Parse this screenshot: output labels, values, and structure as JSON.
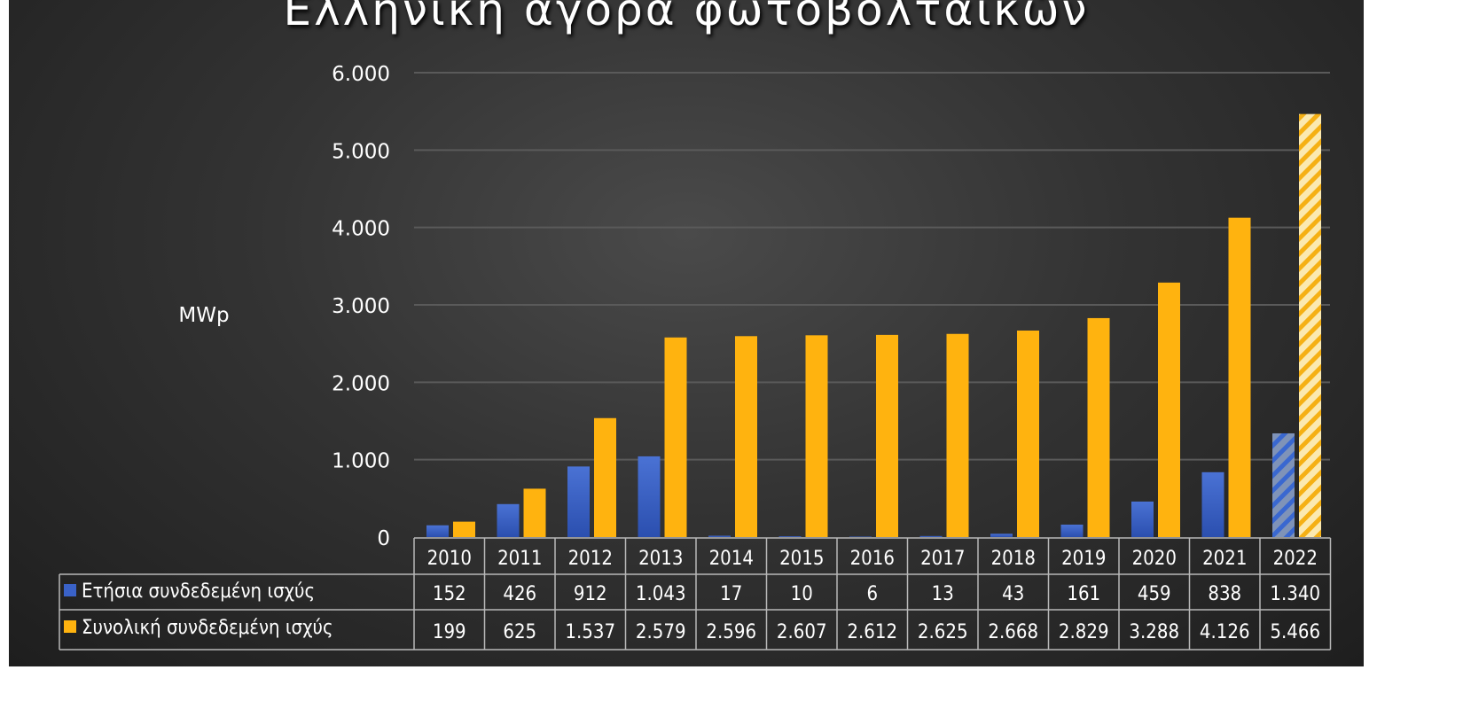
{
  "chart_data": {
    "type": "bar",
    "title": "Ελληνική αγορά φωτοβολταϊκών",
    "ylabel": "MWp",
    "xlabel": "",
    "ylim": [
      0,
      6000
    ],
    "yticks": [
      "0",
      "1.000",
      "2.000",
      "3.000",
      "4.000",
      "5.000",
      "6.000"
    ],
    "grid": true,
    "legend": "data-table",
    "categories": [
      "2010",
      "2011",
      "2012",
      "2013",
      "2014",
      "2015",
      "2016",
      "2017",
      "2018",
      "2019",
      "2020",
      "2021",
      "2022"
    ],
    "series": [
      {
        "name": "Ετήσια συνδεδεμένη ισχύς",
        "color": "#3a62c8",
        "values": [
          152,
          426,
          912,
          1043,
          17,
          10,
          6,
          13,
          43,
          161,
          459,
          838,
          1340
        ],
        "labels": [
          "152",
          "426",
          "912",
          "1.043",
          "17",
          "10",
          "6",
          "13",
          "43",
          "161",
          "459",
          "838",
          "1.340"
        ]
      },
      {
        "name": "Συνολική συνδεδεμένη ισχύς",
        "color": "#ffb30f",
        "values": [
          199,
          625,
          1537,
          2579,
          2596,
          2607,
          2612,
          2625,
          2668,
          2829,
          3288,
          4126,
          5466
        ],
        "labels": [
          "199",
          "625",
          "1.537",
          "2.579",
          "2.596",
          "2.607",
          "2.612",
          "2.625",
          "2.668",
          "2.829",
          "3.288",
          "4.126",
          "5.466"
        ]
      }
    ],
    "hatched_categories": [
      "2022"
    ]
  }
}
